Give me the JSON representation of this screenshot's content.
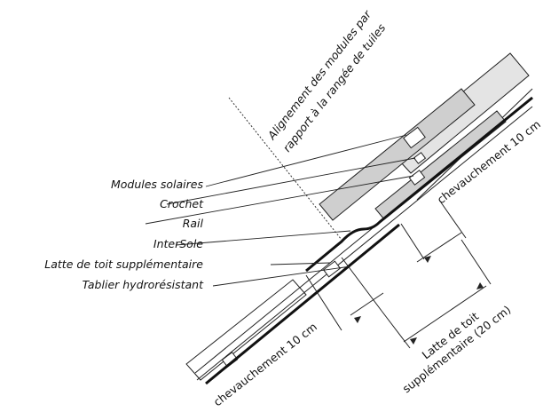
{
  "colors": {
    "module_fill": "#cfcfcf",
    "line": "#222222",
    "background": "#ffffff"
  },
  "labels": {
    "modules_solaires": "Modules solaires",
    "crochet": "Crochet",
    "rail": "Rail",
    "intersole": "InterSole",
    "latte_supp": "Latte de toit supplémentaire",
    "tablier": "Tablier hydrorésistant"
  },
  "annotations": {
    "alignment_line1": "Alignement des modules par",
    "alignment_line2": "rapport à la rangée de tuiles",
    "overlap_top": "chevauchement 10 cm",
    "overlap_bottom": "chevauchement 10 cm",
    "batten_line1": "Latte de toit",
    "batten_line2": "supplémentaire (20 cm)"
  }
}
